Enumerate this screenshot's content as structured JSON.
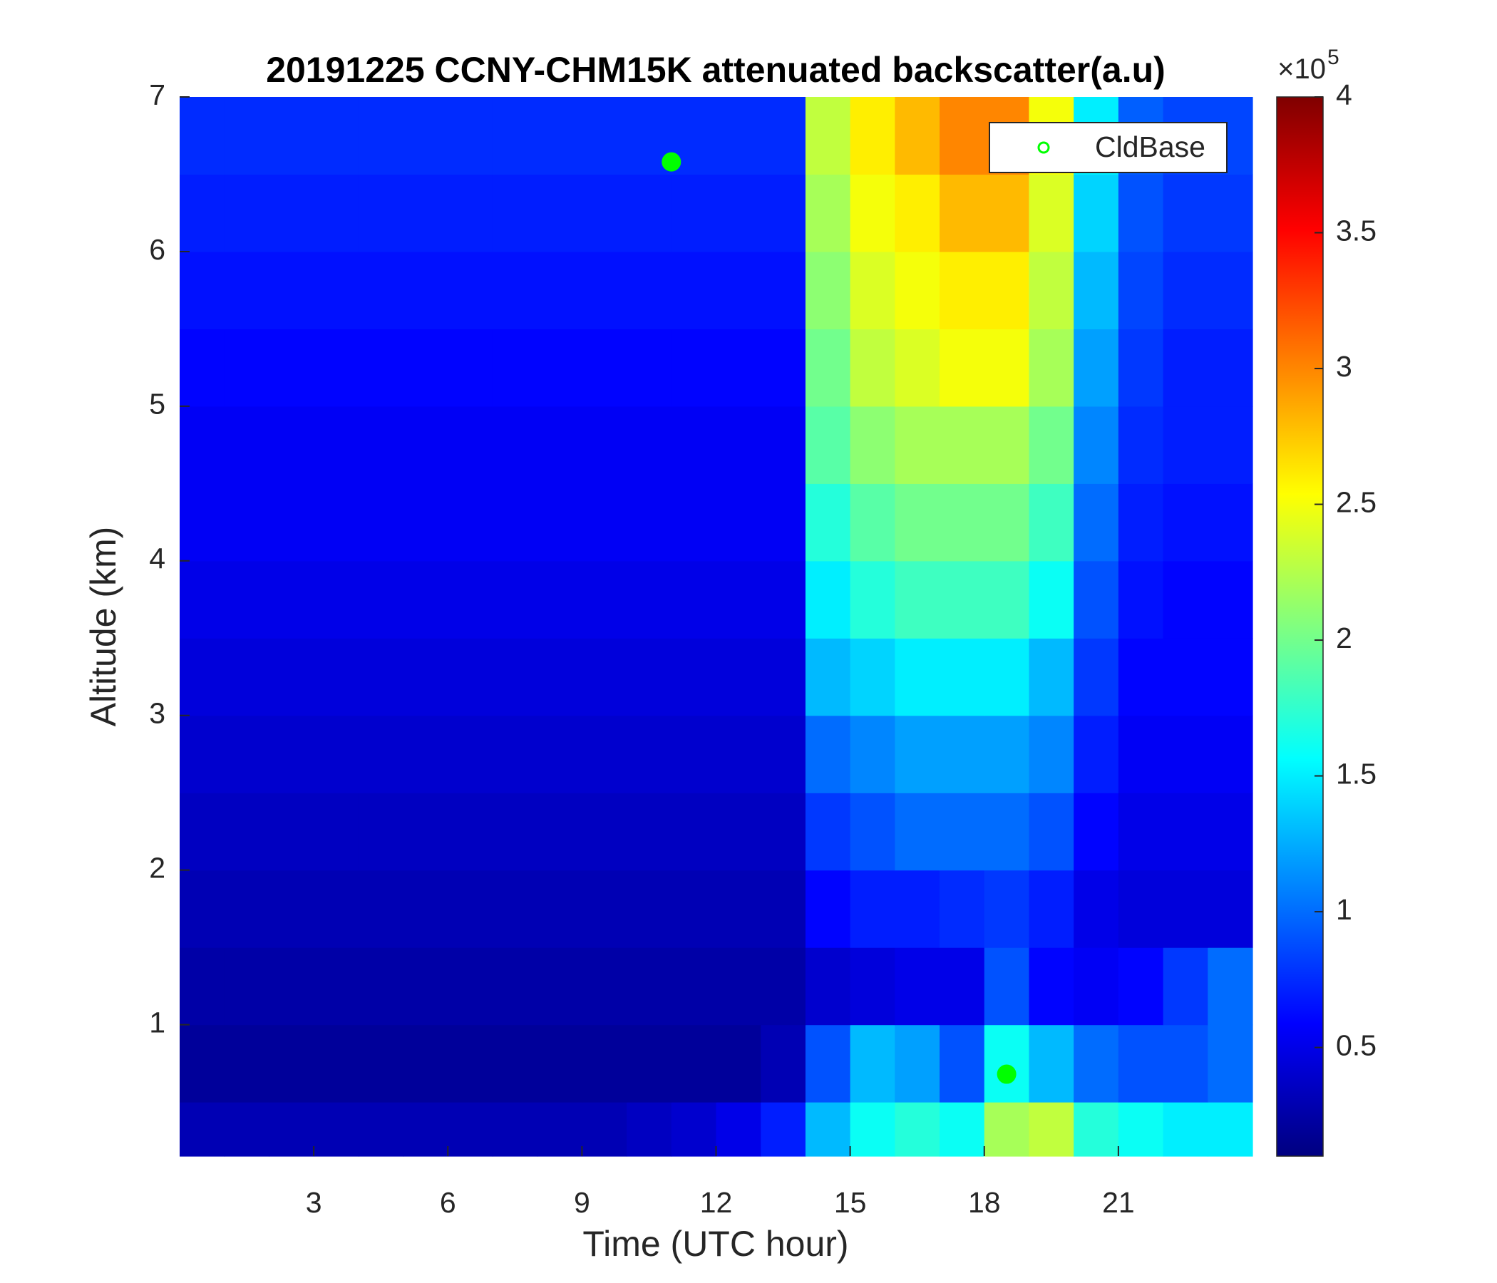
{
  "chart_data": {
    "type": "heatmap",
    "title": "20191225 CCNY-CHM15K attenuated backscatter(a.u)",
    "x_label": "Time (UTC hour)",
    "y_label": "Altitude (km)",
    "x_edges": [
      0,
      1,
      2,
      3,
      4,
      5,
      6,
      7,
      8,
      9,
      10,
      11,
      12,
      13,
      14,
      15,
      16,
      17,
      18,
      19,
      20,
      21,
      22,
      23,
      24
    ],
    "y_edges": [
      0.15,
      0.5,
      1,
      1.5,
      2,
      2.5,
      3,
      3.5,
      4,
      4.5,
      5,
      5.5,
      6,
      6.5,
      7
    ],
    "z": [
      [
        0.3,
        0.3,
        0.3,
        0.3,
        0.3,
        0.3,
        0.3,
        0.3,
        0.3,
        0.3,
        0.35,
        0.4,
        0.5,
        0.7,
        1.3,
        1.6,
        1.7,
        1.6,
        2.2,
        2.3,
        1.7,
        1.6,
        1.5,
        1.5
      ],
      [
        0.2,
        0.2,
        0.2,
        0.2,
        0.2,
        0.2,
        0.2,
        0.2,
        0.2,
        0.2,
        0.2,
        0.2,
        0.2,
        0.3,
        0.9,
        1.3,
        1.2,
        0.9,
        1.6,
        1.3,
        1.0,
        0.9,
        0.9,
        1.0
      ],
      [
        0.25,
        0.25,
        0.25,
        0.25,
        0.25,
        0.25,
        0.25,
        0.25,
        0.25,
        0.25,
        0.25,
        0.25,
        0.25,
        0.25,
        0.4,
        0.45,
        0.5,
        0.5,
        0.9,
        0.6,
        0.55,
        0.6,
        0.8,
        1.0
      ],
      [
        0.3,
        0.3,
        0.3,
        0.3,
        0.3,
        0.3,
        0.3,
        0.3,
        0.3,
        0.3,
        0.3,
        0.3,
        0.3,
        0.3,
        0.6,
        0.7,
        0.7,
        0.75,
        0.8,
        0.7,
        0.5,
        0.45,
        0.45,
        0.45
      ],
      [
        0.35,
        0.35,
        0.35,
        0.35,
        0.35,
        0.35,
        0.35,
        0.35,
        0.35,
        0.35,
        0.35,
        0.35,
        0.35,
        0.35,
        0.8,
        0.9,
        1.0,
        1.0,
        1.0,
        0.9,
        0.6,
        0.5,
        0.5,
        0.5
      ],
      [
        0.4,
        0.4,
        0.4,
        0.4,
        0.4,
        0.4,
        0.4,
        0.4,
        0.4,
        0.4,
        0.4,
        0.4,
        0.4,
        0.4,
        1.0,
        1.1,
        1.2,
        1.2,
        1.2,
        1.1,
        0.7,
        0.55,
        0.55,
        0.55
      ],
      [
        0.45,
        0.45,
        0.45,
        0.45,
        0.45,
        0.45,
        0.45,
        0.45,
        0.45,
        0.45,
        0.45,
        0.45,
        0.45,
        0.45,
        1.3,
        1.4,
        1.5,
        1.5,
        1.5,
        1.3,
        0.8,
        0.6,
        0.6,
        0.6
      ],
      [
        0.5,
        0.5,
        0.5,
        0.5,
        0.5,
        0.5,
        0.5,
        0.5,
        0.5,
        0.5,
        0.5,
        0.5,
        0.5,
        0.5,
        1.5,
        1.7,
        1.8,
        1.8,
        1.8,
        1.6,
        0.9,
        0.65,
        0.6,
        0.6
      ],
      [
        0.55,
        0.55,
        0.55,
        0.55,
        0.55,
        0.55,
        0.55,
        0.55,
        0.55,
        0.55,
        0.55,
        0.55,
        0.55,
        0.55,
        1.7,
        1.9,
        2.0,
        2.0,
        2.0,
        1.8,
        1.0,
        0.7,
        0.65,
        0.65
      ],
      [
        0.55,
        0.55,
        0.55,
        0.55,
        0.55,
        0.55,
        0.55,
        0.55,
        0.55,
        0.55,
        0.55,
        0.55,
        0.55,
        0.55,
        1.9,
        2.1,
        2.2,
        2.2,
        2.2,
        2.0,
        1.1,
        0.75,
        0.7,
        0.7
      ],
      [
        0.6,
        0.6,
        0.6,
        0.6,
        0.6,
        0.6,
        0.6,
        0.6,
        0.6,
        0.6,
        0.6,
        0.6,
        0.6,
        0.6,
        2.0,
        2.3,
        2.4,
        2.5,
        2.5,
        2.2,
        1.2,
        0.8,
        0.7,
        0.7
      ],
      [
        0.65,
        0.65,
        0.65,
        0.65,
        0.65,
        0.65,
        0.65,
        0.65,
        0.65,
        0.65,
        0.65,
        0.65,
        0.65,
        0.65,
        2.1,
        2.4,
        2.5,
        2.6,
        2.6,
        2.3,
        1.3,
        0.85,
        0.75,
        0.75
      ],
      [
        0.7,
        0.7,
        0.7,
        0.7,
        0.7,
        0.7,
        0.7,
        0.7,
        0.7,
        0.7,
        0.7,
        0.7,
        0.7,
        0.7,
        2.2,
        2.5,
        2.6,
        2.8,
        2.8,
        2.4,
        1.4,
        0.9,
        0.8,
        0.8
      ],
      [
        0.75,
        0.75,
        0.75,
        0.75,
        0.75,
        0.75,
        0.75,
        0.75,
        0.75,
        0.75,
        0.75,
        0.75,
        0.75,
        0.75,
        2.3,
        2.6,
        2.8,
        3.0,
        3.0,
        2.5,
        1.5,
        0.95,
        0.85,
        0.85
      ]
    ],
    "colormap": "jet",
    "clim": [
      0.1,
      4
    ],
    "colorbar_ticks": [
      0.5,
      1,
      1.5,
      2,
      2.5,
      3,
      3.5,
      4
    ],
    "colorbar_scale_label": "×10",
    "colorbar_scale_exponent": "5",
    "xlim": [
      0,
      24
    ],
    "ylim": [
      0.15,
      7
    ],
    "xticks": [
      3,
      6,
      9,
      12,
      15,
      18,
      21
    ],
    "yticks": [
      1,
      2,
      3,
      4,
      5,
      6,
      7
    ],
    "series": [
      {
        "name": "CldBase",
        "color": "#00ff00",
        "x": [
          11,
          18.5
        ],
        "values": [
          6.58,
          0.68
        ]
      }
    ],
    "legend": "upper right"
  }
}
